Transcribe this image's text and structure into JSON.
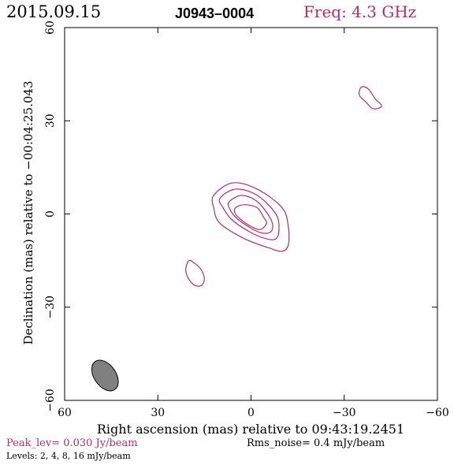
{
  "header": {
    "date": "2015.09.15",
    "source": "J0943–0004",
    "freq": "Freq: 4.3 GHz"
  },
  "footer": {
    "peak": "Peak_lev=  0.030 Jy/beam",
    "rms": "Rms_noise=  0.4 mJy/beam",
    "levels": "Levels:  2,  4,  8,  16 mJy/beam"
  },
  "colors": {
    "contour": "#b03060",
    "beam_fill": "#808080",
    "axis": "#000000",
    "peak_text": "#b03060",
    "freq_text": "#b03060"
  },
  "chart_data": {
    "type": "contour",
    "title": "J0943–0004",
    "xlabel": "Right ascension (mas) relative to 09:43:19.2451",
    "ylabel": "Declination (mas) relative to −00:04:25.043",
    "xlim": [
      60,
      -60
    ],
    "ylim": [
      -60,
      60
    ],
    "xticks": [
      60,
      30,
      0,
      -30,
      -60
    ],
    "yticks": [
      -60,
      -30,
      0,
      30,
      60
    ],
    "xtick_labels": [
      "60",
      "30",
      "0",
      "−30",
      "−60"
    ],
    "ytick_labels": [
      "−60",
      "−30",
      "0",
      "30",
      "60"
    ],
    "levels_mJy": [
      2,
      4,
      8,
      16
    ],
    "peak_Jy_per_beam": 0.03,
    "rms_mJy_per_beam": 0.4,
    "contours": [
      {
        "component": "core",
        "level": 2,
        "points": [
          [
            12,
            6
          ],
          [
            6,
            10
          ],
          [
            -2,
            8
          ],
          [
            -10,
            2
          ],
          [
            -12,
            -4
          ],
          [
            -12,
            -10
          ],
          [
            -10,
            -12
          ],
          [
            -6,
            -11
          ],
          [
            2,
            -8
          ],
          [
            10,
            -3
          ],
          [
            12,
            2
          ]
        ]
      },
      {
        "component": "core",
        "level": 4,
        "points": [
          [
            10,
            5
          ],
          [
            5,
            8
          ],
          [
            -2,
            6
          ],
          [
            -8,
            0
          ],
          [
            -9,
            -5
          ],
          [
            -8,
            -8
          ],
          [
            -5,
            -8
          ],
          [
            0,
            -6
          ],
          [
            6,
            -2
          ],
          [
            9,
            2
          ]
        ]
      },
      {
        "component": "core",
        "level": 8,
        "points": [
          [
            7,
            4
          ],
          [
            3,
            6
          ],
          [
            -2,
            4
          ],
          [
            -6,
            -1
          ],
          [
            -7,
            -4
          ],
          [
            -6,
            -6
          ],
          [
            -3,
            -6
          ],
          [
            1,
            -4
          ],
          [
            5,
            -1
          ],
          [
            7,
            2
          ]
        ]
      },
      {
        "component": "core",
        "level": 16,
        "points": [
          [
            5,
            2
          ],
          [
            2,
            3
          ],
          [
            -2,
            2
          ],
          [
            -4,
            -1
          ],
          [
            -5,
            -3
          ],
          [
            -3,
            -5
          ],
          [
            0,
            -4
          ],
          [
            3,
            -2
          ],
          [
            5,
            0
          ]
        ]
      },
      {
        "component": "ne",
        "level": 2,
        "points": [
          [
            -36,
            41
          ],
          [
            -38,
            40
          ],
          [
            -40,
            37
          ],
          [
            -42,
            35
          ],
          [
            -41,
            34
          ],
          [
            -39,
            34
          ],
          [
            -37,
            36
          ],
          [
            -35,
            38
          ],
          [
            -35,
            40
          ]
        ]
      },
      {
        "component": "sw",
        "level": 2,
        "points": [
          [
            20,
            -15
          ],
          [
            18,
            -16
          ],
          [
            16,
            -18
          ],
          [
            15,
            -21
          ],
          [
            16,
            -23
          ],
          [
            18,
            -23
          ],
          [
            20,
            -21
          ],
          [
            21,
            -18
          ]
        ]
      }
    ],
    "beam": {
      "x": 47,
      "y": -52,
      "major_mas": 11,
      "minor_mas": 7,
      "pa_deg": -35
    }
  }
}
